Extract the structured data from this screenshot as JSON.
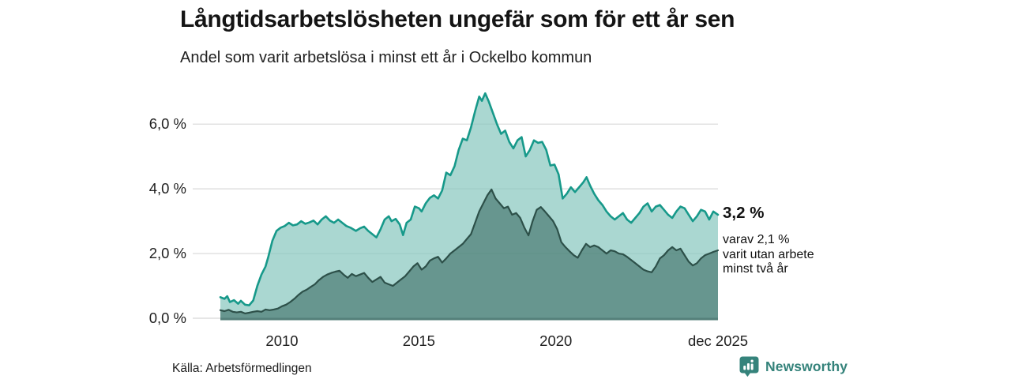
{
  "header": {
    "title": "Långtidsarbetslösheten ungefär som för ett år sen",
    "subtitle": "Andel som varit arbetslösa i minst ett år i Ockelbo kommun"
  },
  "chart_data": {
    "type": "area",
    "title": "Långtidsarbetslösheten ungefär som för ett år sen",
    "subtitle": "Andel som varit arbetslösa i minst ett år i Ockelbo kommun",
    "xlabel": "",
    "ylabel": "",
    "x_axis": {
      "range": [
        2007.75,
        2025.92
      ],
      "ticks": [
        {
          "x": 2010,
          "label": "2010"
        },
        {
          "x": 2015,
          "label": "2015"
        },
        {
          "x": 2020,
          "label": "2020"
        },
        {
          "x": 2025.92,
          "label": "dec 2025"
        }
      ]
    },
    "y_axis": {
      "range": [
        0,
        7.2
      ],
      "grid": true,
      "ticks": [
        {
          "y": 0,
          "label": "0,0 %"
        },
        {
          "y": 2,
          "label": "2,0 %"
        },
        {
          "y": 4,
          "label": "4,0 %"
        },
        {
          "y": 6,
          "label": "6,0 %"
        }
      ]
    },
    "legend_position": "right-annotations",
    "series": [
      {
        "name": "Andel som varit arbetslösa i minst ett år",
        "stroke": "#17998a",
        "fill": "rgba(137,200,191,0.72)",
        "stroke_width": 2.6,
        "latest_value": 3.2,
        "end_label": "3,2 %",
        "points": [
          [
            2007.75,
            0.65
          ],
          [
            2007.9,
            0.6
          ],
          [
            2008.0,
            0.68
          ],
          [
            2008.1,
            0.5
          ],
          [
            2008.25,
            0.56
          ],
          [
            2008.4,
            0.45
          ],
          [
            2008.5,
            0.54
          ],
          [
            2008.65,
            0.42
          ],
          [
            2008.8,
            0.4
          ],
          [
            2008.95,
            0.55
          ],
          [
            2009.1,
            1.0
          ],
          [
            2009.25,
            1.35
          ],
          [
            2009.4,
            1.6
          ],
          [
            2009.5,
            1.9
          ],
          [
            2009.65,
            2.4
          ],
          [
            2009.8,
            2.7
          ],
          [
            2009.95,
            2.8
          ],
          [
            2010.1,
            2.85
          ],
          [
            2010.25,
            2.95
          ],
          [
            2010.4,
            2.87
          ],
          [
            2010.55,
            2.9
          ],
          [
            2010.7,
            3.0
          ],
          [
            2010.85,
            2.92
          ],
          [
            2011.0,
            2.96
          ],
          [
            2011.15,
            3.02
          ],
          [
            2011.3,
            2.9
          ],
          [
            2011.45,
            3.05
          ],
          [
            2011.6,
            3.15
          ],
          [
            2011.75,
            3.02
          ],
          [
            2011.9,
            2.95
          ],
          [
            2012.05,
            3.05
          ],
          [
            2012.2,
            2.95
          ],
          [
            2012.35,
            2.85
          ],
          [
            2012.5,
            2.8
          ],
          [
            2012.7,
            2.7
          ],
          [
            2012.85,
            2.78
          ],
          [
            2013.0,
            2.83
          ],
          [
            2013.15,
            2.7
          ],
          [
            2013.3,
            2.6
          ],
          [
            2013.45,
            2.5
          ],
          [
            2013.6,
            2.75
          ],
          [
            2013.75,
            3.05
          ],
          [
            2013.9,
            3.15
          ],
          [
            2014.0,
            3.0
          ],
          [
            2014.15,
            3.07
          ],
          [
            2014.3,
            2.9
          ],
          [
            2014.42,
            2.57
          ],
          [
            2014.55,
            2.95
          ],
          [
            2014.7,
            3.05
          ],
          [
            2014.85,
            3.45
          ],
          [
            2015.0,
            3.4
          ],
          [
            2015.1,
            3.3
          ],
          [
            2015.25,
            3.55
          ],
          [
            2015.4,
            3.72
          ],
          [
            2015.55,
            3.8
          ],
          [
            2015.7,
            3.7
          ],
          [
            2015.85,
            3.95
          ],
          [
            2016.0,
            4.5
          ],
          [
            2016.15,
            4.42
          ],
          [
            2016.3,
            4.7
          ],
          [
            2016.45,
            5.2
          ],
          [
            2016.6,
            5.55
          ],
          [
            2016.75,
            5.5
          ],
          [
            2016.9,
            5.9
          ],
          [
            2017.05,
            6.4
          ],
          [
            2017.2,
            6.85
          ],
          [
            2017.3,
            6.72
          ],
          [
            2017.42,
            6.95
          ],
          [
            2017.55,
            6.7
          ],
          [
            2017.7,
            6.35
          ],
          [
            2017.85,
            6.0
          ],
          [
            2018.0,
            5.7
          ],
          [
            2018.15,
            5.8
          ],
          [
            2018.3,
            5.45
          ],
          [
            2018.45,
            5.25
          ],
          [
            2018.6,
            5.5
          ],
          [
            2018.75,
            5.6
          ],
          [
            2018.9,
            5.0
          ],
          [
            2019.05,
            5.2
          ],
          [
            2019.2,
            5.5
          ],
          [
            2019.35,
            5.42
          ],
          [
            2019.5,
            5.45
          ],
          [
            2019.65,
            5.2
          ],
          [
            2019.8,
            4.72
          ],
          [
            2019.95,
            4.75
          ],
          [
            2020.1,
            4.45
          ],
          [
            2020.25,
            3.7
          ],
          [
            2020.4,
            3.85
          ],
          [
            2020.55,
            4.05
          ],
          [
            2020.7,
            3.9
          ],
          [
            2020.85,
            4.05
          ],
          [
            2021.0,
            4.2
          ],
          [
            2021.12,
            4.36
          ],
          [
            2021.25,
            4.1
          ],
          [
            2021.4,
            3.85
          ],
          [
            2021.55,
            3.65
          ],
          [
            2021.7,
            3.5
          ],
          [
            2021.85,
            3.3
          ],
          [
            2022.0,
            3.15
          ],
          [
            2022.15,
            3.05
          ],
          [
            2022.3,
            3.15
          ],
          [
            2022.45,
            3.25
          ],
          [
            2022.6,
            3.05
          ],
          [
            2022.75,
            2.95
          ],
          [
            2022.9,
            3.1
          ],
          [
            2023.05,
            3.25
          ],
          [
            2023.2,
            3.45
          ],
          [
            2023.35,
            3.55
          ],
          [
            2023.5,
            3.3
          ],
          [
            2023.65,
            3.45
          ],
          [
            2023.8,
            3.5
          ],
          [
            2023.95,
            3.35
          ],
          [
            2024.1,
            3.2
          ],
          [
            2024.25,
            3.1
          ],
          [
            2024.4,
            3.3
          ],
          [
            2024.55,
            3.45
          ],
          [
            2024.7,
            3.4
          ],
          [
            2024.85,
            3.2
          ],
          [
            2025.0,
            3.0
          ],
          [
            2025.15,
            3.15
          ],
          [
            2025.3,
            3.35
          ],
          [
            2025.45,
            3.3
          ],
          [
            2025.6,
            3.05
          ],
          [
            2025.75,
            3.3
          ],
          [
            2025.92,
            3.2
          ]
        ]
      },
      {
        "name": "varav varit utan arbete minst två år",
        "stroke": "#2d5049",
        "fill": "rgba(61,110,102,0.62)",
        "stroke_width": 2.2,
        "latest_value": 2.1,
        "end_label": "varav 2,1 % varit utan arbete minst två år",
        "points": [
          [
            2007.75,
            0.25
          ],
          [
            2007.9,
            0.22
          ],
          [
            2008.05,
            0.26
          ],
          [
            2008.2,
            0.2
          ],
          [
            2008.35,
            0.18
          ],
          [
            2008.5,
            0.2
          ],
          [
            2008.65,
            0.15
          ],
          [
            2008.8,
            0.17
          ],
          [
            2008.95,
            0.2
          ],
          [
            2009.1,
            0.22
          ],
          [
            2009.25,
            0.2
          ],
          [
            2009.4,
            0.27
          ],
          [
            2009.55,
            0.25
          ],
          [
            2009.7,
            0.27
          ],
          [
            2009.85,
            0.3
          ],
          [
            2010.0,
            0.37
          ],
          [
            2010.15,
            0.42
          ],
          [
            2010.3,
            0.5
          ],
          [
            2010.45,
            0.6
          ],
          [
            2010.6,
            0.72
          ],
          [
            2010.75,
            0.82
          ],
          [
            2010.9,
            0.88
          ],
          [
            2011.05,
            0.97
          ],
          [
            2011.2,
            1.05
          ],
          [
            2011.35,
            1.18
          ],
          [
            2011.5,
            1.28
          ],
          [
            2011.65,
            1.35
          ],
          [
            2011.8,
            1.4
          ],
          [
            2011.95,
            1.44
          ],
          [
            2012.1,
            1.47
          ],
          [
            2012.25,
            1.35
          ],
          [
            2012.4,
            1.25
          ],
          [
            2012.55,
            1.37
          ],
          [
            2012.7,
            1.3
          ],
          [
            2012.85,
            1.35
          ],
          [
            2013.0,
            1.4
          ],
          [
            2013.15,
            1.25
          ],
          [
            2013.3,
            1.12
          ],
          [
            2013.45,
            1.2
          ],
          [
            2013.6,
            1.28
          ],
          [
            2013.75,
            1.1
          ],
          [
            2013.9,
            1.05
          ],
          [
            2014.05,
            1.0
          ],
          [
            2014.2,
            1.1
          ],
          [
            2014.35,
            1.2
          ],
          [
            2014.5,
            1.3
          ],
          [
            2014.65,
            1.45
          ],
          [
            2014.8,
            1.6
          ],
          [
            2014.95,
            1.7
          ],
          [
            2015.1,
            1.5
          ],
          [
            2015.25,
            1.6
          ],
          [
            2015.4,
            1.78
          ],
          [
            2015.55,
            1.85
          ],
          [
            2015.7,
            1.9
          ],
          [
            2015.85,
            1.72
          ],
          [
            2016.0,
            1.85
          ],
          [
            2016.15,
            2.0
          ],
          [
            2016.3,
            2.1
          ],
          [
            2016.45,
            2.2
          ],
          [
            2016.6,
            2.3
          ],
          [
            2016.75,
            2.45
          ],
          [
            2016.9,
            2.6
          ],
          [
            2017.05,
            2.95
          ],
          [
            2017.2,
            3.3
          ],
          [
            2017.35,
            3.55
          ],
          [
            2017.5,
            3.8
          ],
          [
            2017.65,
            3.98
          ],
          [
            2017.8,
            3.7
          ],
          [
            2017.95,
            3.55
          ],
          [
            2018.1,
            3.4
          ],
          [
            2018.25,
            3.45
          ],
          [
            2018.4,
            3.2
          ],
          [
            2018.55,
            3.25
          ],
          [
            2018.7,
            3.1
          ],
          [
            2018.85,
            2.8
          ],
          [
            2019.0,
            2.56
          ],
          [
            2019.15,
            3.0
          ],
          [
            2019.3,
            3.35
          ],
          [
            2019.45,
            3.44
          ],
          [
            2019.6,
            3.3
          ],
          [
            2019.75,
            3.15
          ],
          [
            2019.9,
            3.0
          ],
          [
            2020.05,
            2.75
          ],
          [
            2020.2,
            2.35
          ],
          [
            2020.35,
            2.2
          ],
          [
            2020.5,
            2.07
          ],
          [
            2020.65,
            1.95
          ],
          [
            2020.8,
            1.87
          ],
          [
            2020.95,
            2.1
          ],
          [
            2021.1,
            2.3
          ],
          [
            2021.25,
            2.2
          ],
          [
            2021.4,
            2.25
          ],
          [
            2021.55,
            2.2
          ],
          [
            2021.7,
            2.1
          ],
          [
            2021.85,
            2.0
          ],
          [
            2022.0,
            2.1
          ],
          [
            2022.15,
            2.07
          ],
          [
            2022.3,
            2.0
          ],
          [
            2022.45,
            1.98
          ],
          [
            2022.6,
            1.9
          ],
          [
            2022.75,
            1.8
          ],
          [
            2022.9,
            1.7
          ],
          [
            2023.05,
            1.6
          ],
          [
            2023.2,
            1.5
          ],
          [
            2023.35,
            1.45
          ],
          [
            2023.5,
            1.42
          ],
          [
            2023.65,
            1.6
          ],
          [
            2023.8,
            1.85
          ],
          [
            2023.95,
            1.95
          ],
          [
            2024.1,
            2.1
          ],
          [
            2024.25,
            2.2
          ],
          [
            2024.4,
            2.1
          ],
          [
            2024.55,
            2.15
          ],
          [
            2024.7,
            1.95
          ],
          [
            2024.85,
            1.75
          ],
          [
            2025.0,
            1.63
          ],
          [
            2025.15,
            1.7
          ],
          [
            2025.3,
            1.85
          ],
          [
            2025.45,
            1.95
          ],
          [
            2025.6,
            2.0
          ],
          [
            2025.75,
            2.05
          ],
          [
            2025.92,
            2.1
          ]
        ]
      }
    ],
    "colors": {
      "grid": "#d8d8d8",
      "baseline": "#55807a",
      "series1_stroke": "#17998a",
      "series2_stroke": "#2d5049"
    }
  },
  "annotations": {
    "primary": "3,2 %",
    "secondary_lines": [
      "varav 2,1 %",
      "varit utan arbete",
      "minst två år"
    ]
  },
  "source": {
    "label": "Källa: Arbetsförmedlingen"
  },
  "logo": {
    "text": "Newsworthy",
    "color": "#35837b"
  }
}
